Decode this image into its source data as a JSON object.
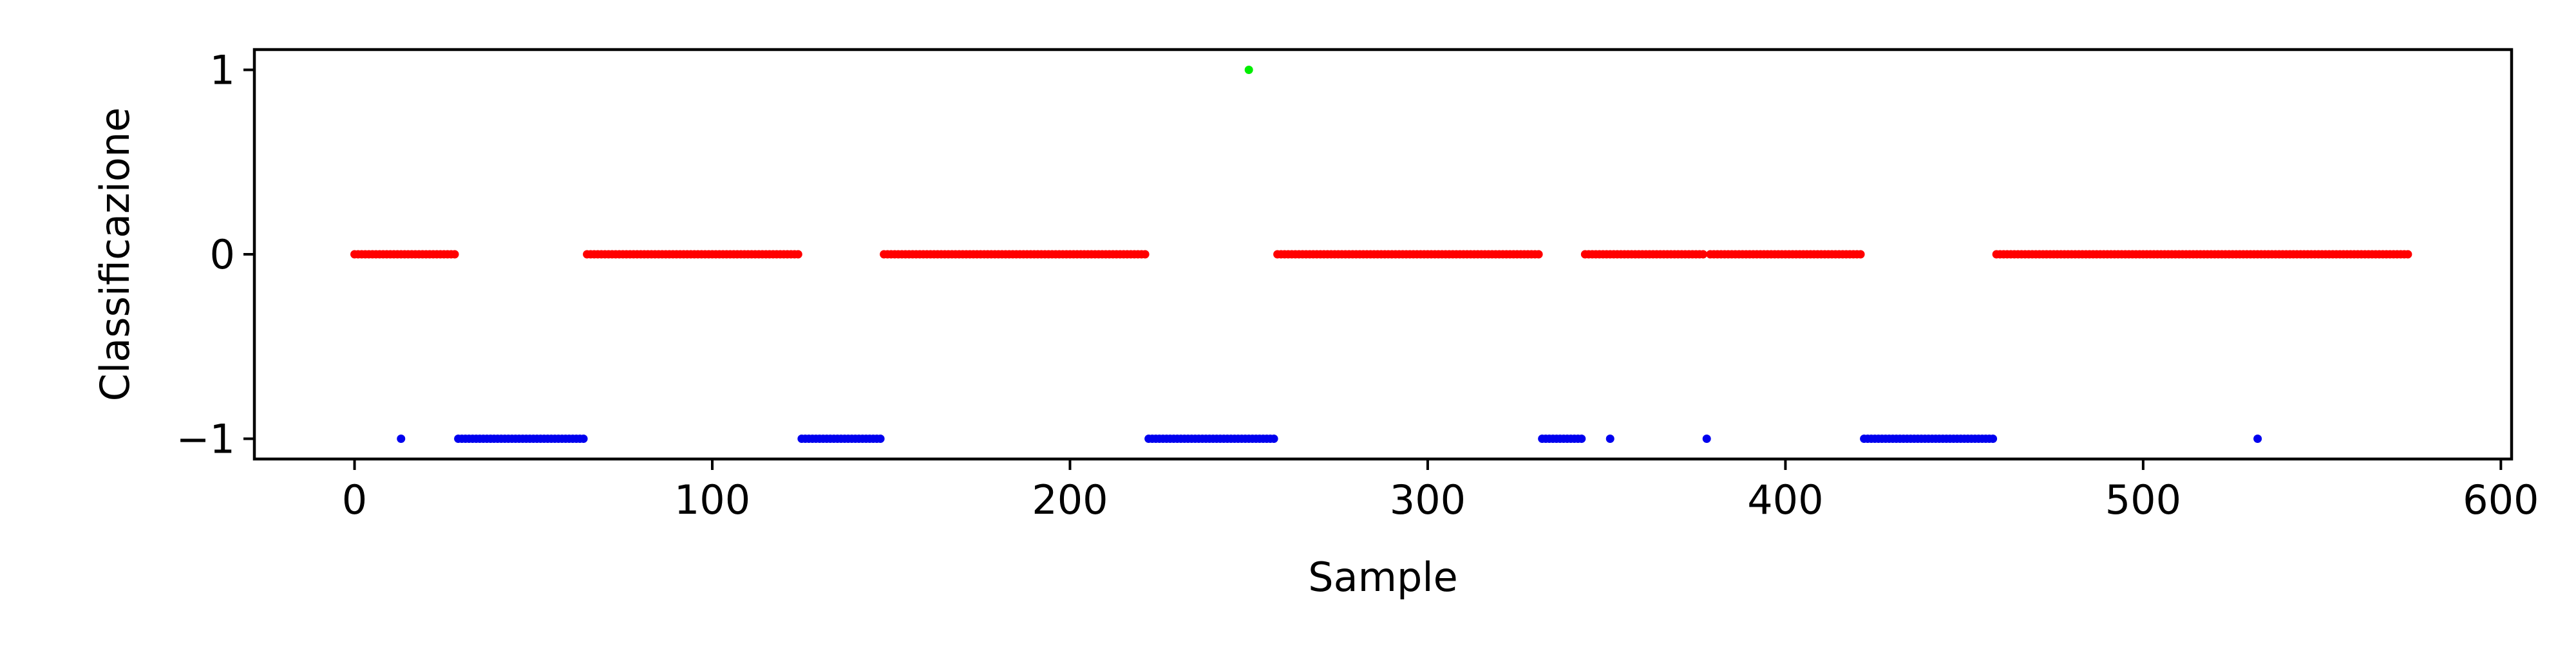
{
  "chart_data": {
    "type": "scatter",
    "xlabel": "Sample",
    "ylabel": "Classificazione",
    "xlim": [
      -28,
      603
    ],
    "ylim": [
      -1.11,
      1.11
    ],
    "xticks": [
      0,
      100,
      200,
      300,
      400,
      500,
      600
    ],
    "yticks": [
      -1,
      0,
      1
    ],
    "ytick_labels": [
      "−1",
      "0",
      "1"
    ],
    "grid": false,
    "legend": "none",
    "class_colors": {
      "1": "#00ee00",
      "0": "#ff0000",
      "-1": "#0000ee"
    },
    "series": [
      {
        "class": 0,
        "color": "#ff0000",
        "ranges": [
          [
            0,
            28
          ],
          [
            65,
            124
          ],
          [
            148,
            221
          ],
          [
            258,
            331
          ],
          [
            344,
            377
          ],
          [
            379,
            421
          ],
          [
            459,
            574
          ]
        ]
      },
      {
        "class": -1,
        "color": "#0000ee",
        "ranges": [
          [
            13,
            13
          ],
          [
            29,
            64
          ],
          [
            125,
            147
          ],
          [
            222,
            257
          ],
          [
            332,
            343
          ],
          [
            351,
            351
          ],
          [
            378,
            378
          ],
          [
            422,
            458
          ],
          [
            532,
            532
          ]
        ]
      },
      {
        "class": 1,
        "color": "#00ee00",
        "ranges": [
          [
            250,
            250
          ]
        ]
      }
    ]
  }
}
